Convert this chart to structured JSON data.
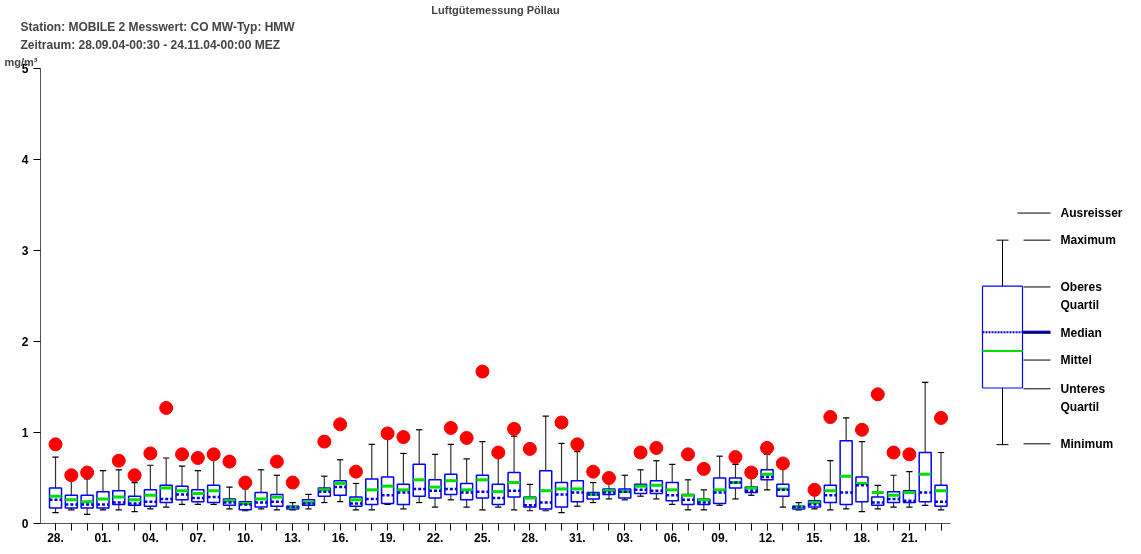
{
  "chart_data": {
    "type": "box",
    "title": "Luftgütemessung Pöllau",
    "subtitle": "Station:  MOBILE 2     Messwert:  CO     MW-Typ:  HMW",
    "ylabel": "mg/m³",
    "annotations": [
      "Zeitraum: 28.09.04-00:30 - 24.11.04-00:00 MEZ",
      "Ausreisser",
      "Maximum",
      "Oberes Quartil",
      "Median",
      "Mittel",
      "Unteres Quartil",
      "Minimum"
    ],
    "categories": [
      "28.",
      null,
      null,
      "01.",
      null,
      null,
      "04.",
      null,
      null,
      "07.",
      null,
      null,
      "10.",
      null,
      null,
      "13.",
      null,
      null,
      "16.",
      null,
      null,
      "19.",
      null,
      null,
      "22.",
      null,
      null,
      "25.",
      null,
      null,
      "28.",
      null,
      null,
      "31.",
      null,
      null,
      "03.",
      null,
      null,
      "06.",
      null,
      null,
      "09.",
      null,
      null,
      "12.",
      null,
      null,
      "15.",
      null,
      null,
      "18.",
      null,
      null,
      "21.",
      null,
      null
    ],
    "ylim": [
      0,
      5
    ],
    "yticks": [
      0,
      1,
      2,
      3,
      4,
      5
    ],
    "grid": false,
    "boxes": [
      {
        "low": 0.12,
        "q1": 0.17,
        "median": 0.26,
        "q3": 0.39,
        "high": 0.73,
        "mean": 0.3,
        "outliers": [
          0.87
        ]
      },
      {
        "low": 0.15,
        "q1": 0.17,
        "median": 0.21,
        "q3": 0.31,
        "high": 0.52,
        "mean": 0.26,
        "outliers": [
          0.53
        ]
      },
      {
        "low": 0.1,
        "q1": 0.17,
        "median": 0.21,
        "q3": 0.31,
        "high": 0.49,
        "mean": 0.24,
        "outliers": [
          0.56
        ]
      },
      {
        "low": 0.15,
        "q1": 0.17,
        "median": 0.21,
        "q3": 0.35,
        "high": 0.58,
        "mean": 0.27
      },
      {
        "low": 0.15,
        "q1": 0.21,
        "median": 0.23,
        "q3": 0.36,
        "high": 0.59,
        "mean": 0.29,
        "outliers": [
          0.69
        ]
      },
      {
        "low": 0.13,
        "q1": 0.2,
        "median": 0.22,
        "q3": 0.3,
        "high": 0.45,
        "mean": 0.26,
        "outliers": [
          0.53
        ]
      },
      {
        "low": 0.16,
        "q1": 0.19,
        "median": 0.24,
        "q3": 0.37,
        "high": 0.64,
        "mean": 0.31,
        "outliers": [
          0.77
        ]
      },
      {
        "low": 0.18,
        "q1": 0.23,
        "median": 0.27,
        "q3": 0.42,
        "high": 0.72,
        "mean": 0.39,
        "outliers": [
          1.27
        ]
      },
      {
        "low": 0.21,
        "q1": 0.26,
        "median": 0.32,
        "q3": 0.41,
        "high": 0.63,
        "mean": 0.36,
        "outliers": [
          0.76
        ]
      },
      {
        "low": 0.21,
        "q1": 0.24,
        "median": 0.28,
        "q3": 0.37,
        "high": 0.58,
        "mean": 0.33,
        "outliers": [
          0.72
        ]
      },
      {
        "low": 0.21,
        "q1": 0.23,
        "median": 0.29,
        "q3": 0.42,
        "high": 0.71,
        "mean": 0.36,
        "outliers": [
          0.76
        ]
      },
      {
        "low": 0.16,
        "q1": 0.2,
        "median": 0.23,
        "q3": 0.27,
        "high": 0.4,
        "mean": 0.25,
        "outliers": [
          0.68
        ]
      },
      {
        "low": 0.14,
        "q1": 0.15,
        "median": 0.21,
        "q3": 0.24,
        "high": 0.38,
        "mean": 0.22,
        "outliers": [
          0.45
        ]
      },
      {
        "low": 0.16,
        "q1": 0.18,
        "median": 0.23,
        "q3": 0.34,
        "high": 0.59,
        "mean": 0.27
      },
      {
        "low": 0.15,
        "q1": 0.19,
        "median": 0.24,
        "q3": 0.32,
        "high": 0.53,
        "mean": 0.29,
        "outliers": [
          0.68
        ]
      },
      {
        "low": 0.15,
        "q1": 0.16,
        "median": 0.18,
        "q3": 0.19,
        "high": 0.23,
        "mean": 0.18,
        "outliers": [
          0.45
        ]
      },
      {
        "low": 0.16,
        "q1": 0.2,
        "median": 0.22,
        "q3": 0.26,
        "high": 0.32,
        "mean": 0.23
      },
      {
        "low": 0.23,
        "q1": 0.3,
        "median": 0.35,
        "q3": 0.39,
        "high": 0.52,
        "mean": 0.37,
        "outliers": [
          0.9
        ]
      },
      {
        "low": 0.24,
        "q1": 0.31,
        "median": 0.4,
        "q3": 0.47,
        "high": 0.7,
        "mean": 0.44,
        "outliers": [
          1.09
        ]
      },
      {
        "low": 0.15,
        "q1": 0.19,
        "median": 0.22,
        "q3": 0.29,
        "high": 0.44,
        "mean": 0.26,
        "outliers": [
          0.57
        ]
      },
      {
        "low": 0.15,
        "q1": 0.21,
        "median": 0.27,
        "q3": 0.49,
        "high": 0.87,
        "mean": 0.37
      },
      {
        "low": 0.21,
        "q1": 0.22,
        "median": 0.31,
        "q3": 0.51,
        "high": 0.94,
        "mean": 0.41,
        "outliers": [
          0.99
        ]
      },
      {
        "low": 0.16,
        "q1": 0.21,
        "median": 0.34,
        "q3": 0.43,
        "high": 0.77,
        "mean": 0.37,
        "outliers": [
          0.95
        ]
      },
      {
        "low": 0.23,
        "q1": 0.3,
        "median": 0.38,
        "q3": 0.65,
        "high": 1.03,
        "mean": 0.48
      },
      {
        "low": 0.18,
        "q1": 0.28,
        "median": 0.36,
        "q3": 0.48,
        "high": 0.76,
        "mean": 0.4
      },
      {
        "low": 0.26,
        "q1": 0.32,
        "median": 0.38,
        "q3": 0.54,
        "high": 0.87,
        "mean": 0.47,
        "outliers": [
          1.05
        ]
      },
      {
        "low": 0.18,
        "q1": 0.26,
        "median": 0.34,
        "q3": 0.44,
        "high": 0.71,
        "mean": 0.37,
        "outliers": [
          0.94
        ]
      },
      {
        "low": 0.15,
        "q1": 0.28,
        "median": 0.35,
        "q3": 0.53,
        "high": 0.9,
        "mean": 0.48,
        "outliers": [
          1.67
        ]
      },
      {
        "low": 0.18,
        "q1": 0.21,
        "median": 0.28,
        "q3": 0.43,
        "high": 0.76,
        "mean": 0.35,
        "outliers": [
          0.78
        ]
      },
      {
        "low": 0.15,
        "q1": 0.29,
        "median": 0.36,
        "q3": 0.56,
        "high": 0.96,
        "mean": 0.45,
        "outliers": [
          1.04
        ]
      },
      {
        "low": 0.14,
        "q1": 0.18,
        "median": 0.2,
        "q3": 0.29,
        "high": 0.43,
        "mean": 0.28,
        "outliers": [
          0.82
        ]
      },
      {
        "low": 0.14,
        "q1": 0.16,
        "median": 0.23,
        "q3": 0.58,
        "high": 1.18,
        "mean": 0.36
      },
      {
        "low": 0.12,
        "q1": 0.18,
        "median": 0.32,
        "q3": 0.45,
        "high": 0.88,
        "mean": 0.38,
        "outliers": [
          1.11
        ]
      },
      {
        "low": 0.19,
        "q1": 0.24,
        "median": 0.34,
        "q3": 0.47,
        "high": 0.79,
        "mean": 0.38,
        "outliers": [
          0.87
        ]
      },
      {
        "low": 0.23,
        "q1": 0.27,
        "median": 0.32,
        "q3": 0.34,
        "high": 0.45,
        "mean": 0.32,
        "outliers": [
          0.57
        ]
      },
      {
        "low": 0.27,
        "q1": 0.32,
        "median": 0.34,
        "q3": 0.38,
        "high": 0.48,
        "mean": 0.36,
        "outliers": [
          0.5
        ]
      },
      {
        "low": 0.26,
        "q1": 0.28,
        "median": 0.35,
        "q3": 0.38,
        "high": 0.53,
        "mean": 0.35
      },
      {
        "low": 0.3,
        "q1": 0.33,
        "median": 0.37,
        "q3": 0.43,
        "high": 0.59,
        "mean": 0.41,
        "outliers": [
          0.78
        ]
      },
      {
        "low": 0.27,
        "q1": 0.33,
        "median": 0.36,
        "q3": 0.47,
        "high": 0.69,
        "mean": 0.42,
        "outliers": [
          0.83
        ]
      },
      {
        "low": 0.21,
        "q1": 0.25,
        "median": 0.31,
        "q3": 0.45,
        "high": 0.65,
        "mean": 0.37
      },
      {
        "low": 0.15,
        "q1": 0.21,
        "median": 0.26,
        "q3": 0.32,
        "high": 0.48,
        "mean": 0.31,
        "outliers": [
          0.76
        ]
      },
      {
        "low": 0.15,
        "q1": 0.21,
        "median": 0.23,
        "q3": 0.27,
        "high": 0.37,
        "mean": 0.26,
        "outliers": [
          0.6
        ]
      },
      {
        "low": 0.2,
        "q1": 0.22,
        "median": 0.34,
        "q3": 0.5,
        "high": 0.74,
        "mean": 0.37
      },
      {
        "low": 0.27,
        "q1": 0.39,
        "median": 0.45,
        "q3": 0.5,
        "high": 0.65,
        "mean": 0.45,
        "outliers": [
          0.73
        ]
      },
      {
        "low": 0.31,
        "q1": 0.34,
        "median": 0.36,
        "q3": 0.4,
        "high": 0.5,
        "mean": 0.39,
        "outliers": [
          0.56
        ]
      },
      {
        "low": 0.37,
        "q1": 0.48,
        "median": 0.51,
        "q3": 0.59,
        "high": 0.76,
        "mean": 0.54,
        "outliers": [
          0.83
        ]
      },
      {
        "low": 0.18,
        "q1": 0.3,
        "median": 0.37,
        "q3": 0.43,
        "high": 0.62,
        "mean": 0.38,
        "outliers": [
          0.66
        ]
      },
      {
        "low": 0.15,
        "q1": 0.16,
        "median": 0.18,
        "q3": 0.19,
        "high": 0.23,
        "mean": 0.18
      },
      {
        "low": 0.16,
        "q1": 0.18,
        "median": 0.21,
        "q3": 0.25,
        "high": 0.34,
        "mean": 0.23,
        "outliers": [
          0.37
        ]
      },
      {
        "low": 0.15,
        "q1": 0.23,
        "median": 0.31,
        "q3": 0.42,
        "high": 0.69,
        "mean": 0.36,
        "outliers": [
          1.17
        ]
      },
      {
        "low": 0.16,
        "q1": 0.21,
        "median": 0.34,
        "q3": 0.91,
        "high": 1.16,
        "mean": 0.52
      },
      {
        "low": 0.13,
        "q1": 0.24,
        "median": 0.42,
        "q3": 0.51,
        "high": 0.9,
        "mean": 0.44,
        "outliers": [
          1.03
        ]
      },
      {
        "low": 0.16,
        "q1": 0.2,
        "median": 0.23,
        "q3": 0.29,
        "high": 0.42,
        "mean": 0.34,
        "outliers": [
          1.42
        ]
      },
      {
        "low": 0.18,
        "q1": 0.23,
        "median": 0.27,
        "q3": 0.35,
        "high": 0.53,
        "mean": 0.31,
        "outliers": [
          0.78
        ]
      },
      {
        "low": 0.18,
        "q1": 0.23,
        "median": 0.25,
        "q3": 0.36,
        "high": 0.57,
        "mean": 0.34,
        "outliers": [
          0.76
        ]
      },
      {
        "low": 0.2,
        "q1": 0.24,
        "median": 0.34,
        "q3": 0.78,
        "high": 1.55,
        "mean": 0.54
      },
      {
        "low": 0.15,
        "q1": 0.19,
        "median": 0.24,
        "q3": 0.42,
        "high": 0.78,
        "mean": 0.36,
        "outliers": [
          1.16
        ]
      }
    ]
  }
}
